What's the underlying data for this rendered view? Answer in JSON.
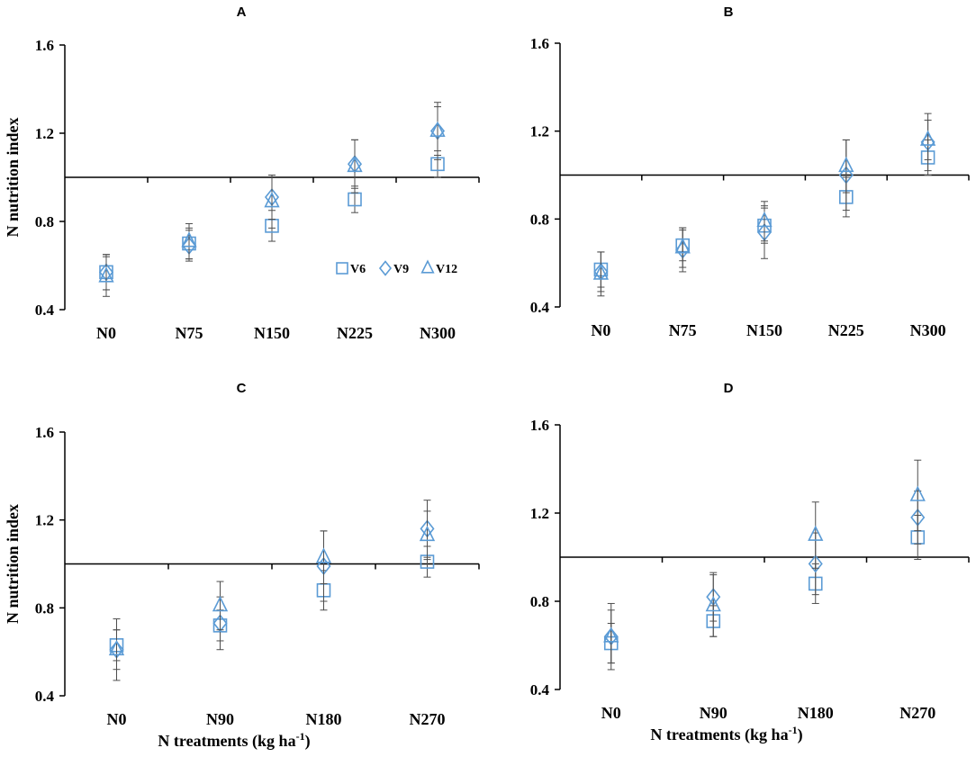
{
  "figure": {
    "y_axis_title": "N nutrition index",
    "x_axis_title_main": "N treatments (kg ha",
    "x_axis_title_sup": "-1",
    "x_axis_title_close": ")",
    "legend": [
      {
        "name": "V6",
        "marker": "square-icon"
      },
      {
        "name": "V9",
        "marker": "diamond-icon"
      },
      {
        "name": "V12",
        "marker": "triangle-icon"
      }
    ]
  },
  "colors": {
    "marker": "#5b9bd5",
    "axis": "#000000",
    "errorbar": "#4d4d4d"
  },
  "chart_data": [
    {
      "panel": "A",
      "type": "scatter",
      "ylim": [
        0.4,
        1.6
      ],
      "yticks": [
        "0.4",
        "0.8",
        "1.2",
        "1.6"
      ],
      "reference_line": 1.0,
      "categories": [
        "N0",
        "N75",
        "N150",
        "N225",
        "N300"
      ],
      "series": [
        {
          "name": "V6",
          "values": [
            0.57,
            0.7,
            0.78,
            0.9,
            1.06
          ],
          "err": [
            0.08,
            0.07,
            0.07,
            0.06,
            0.06
          ]
        },
        {
          "name": "V9",
          "values": [
            0.57,
            0.69,
            0.91,
            1.06,
            1.21
          ],
          "err": [
            0.08,
            0.07,
            0.1,
            0.11,
            0.13
          ]
        },
        {
          "name": "V12",
          "values": [
            0.55,
            0.71,
            0.89,
            1.05,
            1.21
          ],
          "err": [
            0.09,
            0.08,
            0.12,
            0.12,
            0.11
          ]
        }
      ]
    },
    {
      "panel": "B",
      "type": "scatter",
      "ylim": [
        0.4,
        1.6
      ],
      "yticks": [
        "0.4",
        "0.8",
        "1.2",
        "1.6"
      ],
      "reference_line": 1.0,
      "categories": [
        "N0",
        "N75",
        "N150",
        "N225",
        "N300"
      ],
      "series": [
        {
          "name": "V6",
          "values": [
            0.57,
            0.68,
            0.77,
            0.9,
            1.08
          ],
          "err": [
            0.08,
            0.07,
            0.08,
            0.09,
            0.08
          ]
        },
        {
          "name": "V9",
          "values": [
            0.56,
            0.66,
            0.74,
            1.0,
            1.15
          ],
          "err": [
            0.09,
            0.1,
            0.12,
            0.16,
            0.13
          ]
        },
        {
          "name": "V12",
          "values": [
            0.55,
            0.67,
            0.79,
            1.04,
            1.16
          ],
          "err": [
            0.1,
            0.09,
            0.09,
            0.12,
            0.09
          ]
        }
      ]
    },
    {
      "panel": "C",
      "type": "scatter",
      "ylim": [
        0.4,
        1.6
      ],
      "yticks": [
        "0.4",
        "0.8",
        "1.2",
        "1.6"
      ],
      "reference_line": 1.0,
      "categories": [
        "N0",
        "N90",
        "N180",
        "N270"
      ],
      "series": [
        {
          "name": "V6",
          "values": [
            0.63,
            0.72,
            0.88,
            1.01
          ],
          "err": [
            0.07,
            0.07,
            0.09,
            0.07
          ]
        },
        {
          "name": "V9",
          "values": [
            0.61,
            0.73,
            0.99,
            1.16
          ],
          "err": [
            0.14,
            0.12,
            0.16,
            0.13
          ]
        },
        {
          "name": "V12",
          "values": [
            0.61,
            0.81,
            1.03,
            1.13
          ],
          "err": [
            0.09,
            0.11,
            0.12,
            0.11
          ]
        }
      ]
    },
    {
      "panel": "D",
      "type": "scatter",
      "ylim": [
        0.4,
        1.6
      ],
      "yticks": [
        "0.4",
        "0.8",
        "1.2",
        "1.6"
      ],
      "reference_line": 1.0,
      "categories": [
        "N0",
        "N90",
        "N180",
        "N270"
      ],
      "series": [
        {
          "name": "V6",
          "values": [
            0.61,
            0.71,
            0.88,
            1.09
          ],
          "err": [
            0.09,
            0.07,
            0.09,
            0.1
          ]
        },
        {
          "name": "V9",
          "values": [
            0.64,
            0.82,
            0.97,
            1.18
          ],
          "err": [
            0.15,
            0.11,
            0.14,
            0.12
          ]
        },
        {
          "name": "V12",
          "values": [
            0.64,
            0.78,
            1.1,
            1.28
          ],
          "err": [
            0.12,
            0.14,
            0.15,
            0.16
          ]
        }
      ]
    }
  ]
}
